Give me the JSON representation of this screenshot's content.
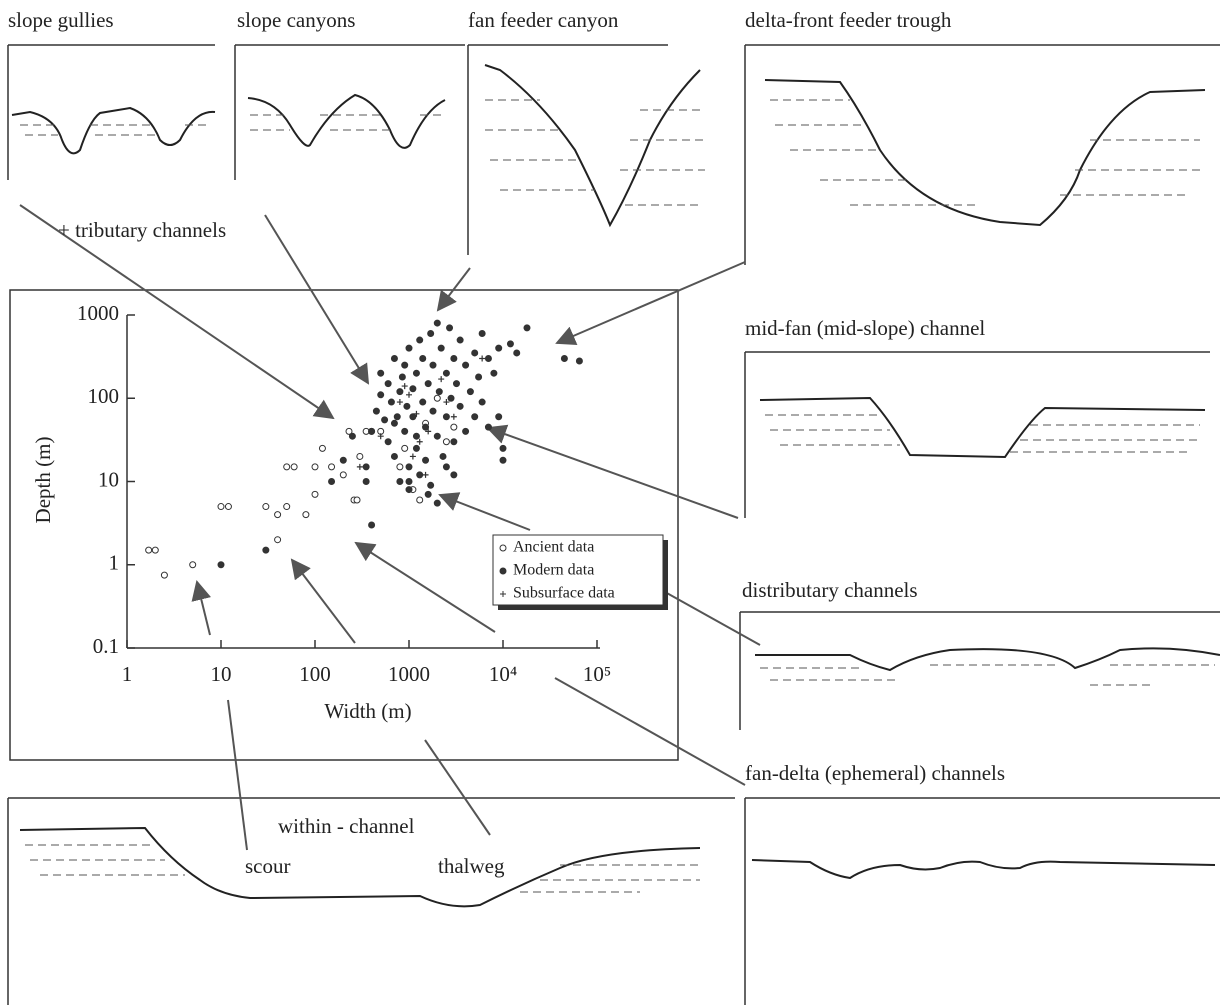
{
  "panels": [
    {
      "label": "slope gullies"
    },
    {
      "label": "slope canyons"
    },
    {
      "label": "fan feeder canyon"
    },
    {
      "label": "delta-front feeder trough"
    },
    {
      "label": "mid-fan (mid-slope) channel"
    },
    {
      "label": "distributary channels"
    },
    {
      "label": "fan-delta (ephemeral) channels"
    }
  ],
  "annotations": {
    "tributary": "+ tributary channels",
    "within": "within - channel",
    "scour": "scour",
    "thalweg": "thalweg"
  },
  "chart_data": {
    "type": "scatter",
    "x_label": "Width (m)",
    "y_label": "Depth (m)",
    "xscale": "log",
    "yscale": "log",
    "xlim": [
      1,
      100000
    ],
    "ylim": [
      0.1,
      1000
    ],
    "xticks": [
      1,
      10,
      100,
      1000,
      {
        "value": 10000,
        "label": "10⁴"
      },
      {
        "value": 100000,
        "label": "10⁵"
      }
    ],
    "yticks": [
      0.1,
      1,
      10,
      100,
      1000
    ],
    "legend": "lower right",
    "series": [
      {
        "name": "Ancient data",
        "color": "#333333",
        "marker": "open-circle",
        "x": [
          1.7,
          2,
          2.5,
          5,
          10,
          12,
          30,
          40,
          40,
          50,
          50,
          60,
          80,
          100,
          100,
          120,
          150,
          200,
          230,
          260,
          280,
          300,
          350,
          400,
          500,
          1100,
          1300,
          1500,
          2500,
          3000,
          2000,
          800,
          900
        ],
        "values": [
          1.5,
          1.5,
          0.75,
          1,
          5,
          5,
          5,
          4,
          2,
          5,
          15,
          15,
          4,
          15,
          7,
          25,
          15,
          12,
          40,
          6,
          6,
          20,
          40,
          40,
          40,
          8,
          6,
          50,
          30,
          45,
          100,
          15,
          25
        ]
      },
      {
        "name": "Modern data",
        "color": "#333333",
        "marker": "filled-circle",
        "x": [
          10,
          30,
          400,
          150,
          200,
          250,
          350,
          350,
          400,
          450,
          500,
          500,
          550,
          600,
          600,
          650,
          700,
          700,
          750,
          800,
          800,
          850,
          900,
          900,
          950,
          1000,
          1000,
          1000,
          1100,
          1100,
          1200,
          1200,
          1300,
          1300,
          1400,
          1400,
          1500,
          1500,
          1600,
          1700,
          1700,
          1800,
          1800,
          2000,
          2000,
          2000,
          2100,
          2200,
          2300,
          2500,
          2500,
          2700,
          2800,
          3000,
          3000,
          3200,
          3500,
          3500,
          4000,
          4000,
          4500,
          5000,
          5000,
          5500,
          6000,
          6000,
          7000,
          7000,
          8000,
          9000,
          10000,
          12000,
          14000,
          18000,
          45000,
          65000,
          9000,
          10000,
          3000,
          1600,
          1000,
          700,
          1200,
          2500
        ],
        "values": [
          1,
          1.5,
          3,
          10,
          18,
          35,
          15,
          10,
          40,
          70,
          110,
          200,
          55,
          30,
          150,
          90,
          20,
          300,
          60,
          120,
          10,
          180,
          40,
          250,
          80,
          15,
          400,
          8,
          130,
          60,
          200,
          25,
          500,
          12,
          90,
          300,
          45,
          18,
          150,
          600,
          9,
          70,
          250,
          800,
          35,
          5.5,
          120,
          400,
          20,
          200,
          60,
          700,
          100,
          300,
          30,
          150,
          500,
          80,
          250,
          40,
          120,
          350,
          60,
          180,
          600,
          90,
          300,
          45,
          200,
          400,
          25,
          450,
          350,
          700,
          300,
          280,
          60,
          18,
          12,
          7,
          10,
          50,
          35,
          15
        ]
      },
      {
        "name": "Subsurface data",
        "color": "#333333",
        "marker": "plus",
        "x": [
          300,
          900,
          1000,
          1200,
          1300,
          1500,
          1600,
          2200,
          2500,
          3000,
          6000,
          1100,
          800,
          500
        ],
        "values": [
          15,
          140,
          110,
          65,
          30,
          12,
          40,
          170,
          90,
          60,
          300,
          20,
          90,
          35
        ]
      }
    ]
  }
}
